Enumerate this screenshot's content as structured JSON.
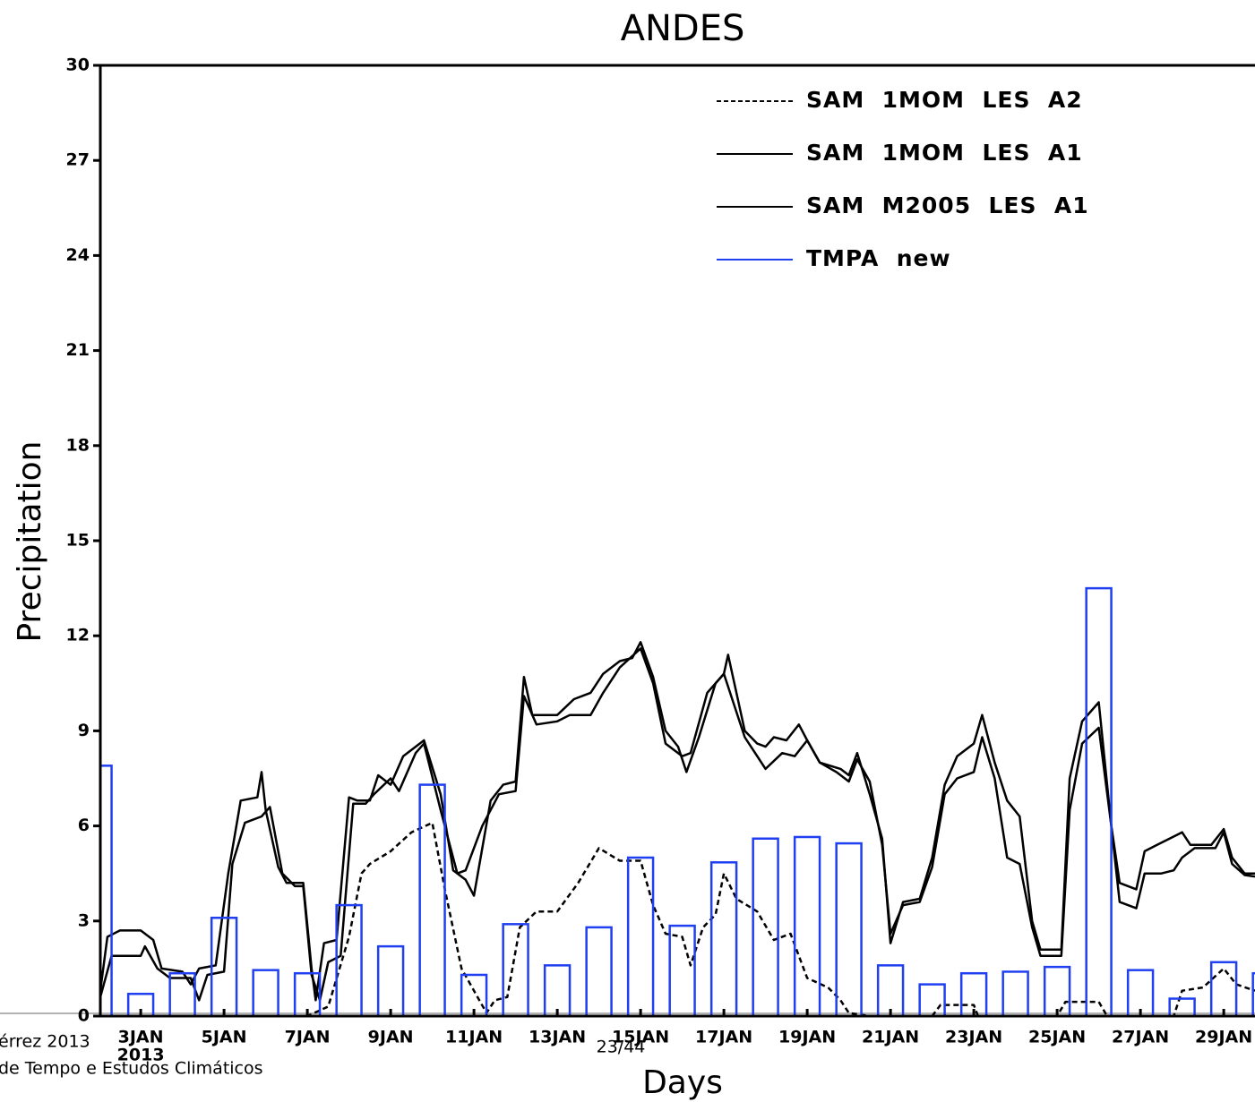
{
  "chart_data": {
    "type": "line_bar",
    "title": "ANDES",
    "x_label": "Days",
    "y_label": "Precipitation",
    "x_sublabel": "2013",
    "xlim": [
      2.03,
      29.75
    ],
    "ylim": [
      0,
      30
    ],
    "xticks": [
      {
        "value": 3,
        "label": "3JAN"
      },
      {
        "value": 5,
        "label": "5JAN"
      },
      {
        "value": 7,
        "label": "7JAN"
      },
      {
        "value": 9,
        "label": "9JAN"
      },
      {
        "value": 11,
        "label": "11JAN"
      },
      {
        "value": 13,
        "label": "13JAN"
      },
      {
        "value": 15,
        "label": "15JAN"
      },
      {
        "value": 17,
        "label": "17JAN"
      },
      {
        "value": 19,
        "label": "19JAN"
      },
      {
        "value": 21,
        "label": "21JAN"
      },
      {
        "value": 23,
        "label": "23JAN"
      },
      {
        "value": 25,
        "label": "25JAN"
      },
      {
        "value": 27,
        "label": "27JAN"
      },
      {
        "value": 29,
        "label": "29JAN"
      }
    ],
    "yticks": [
      0,
      3,
      6,
      9,
      12,
      15,
      18,
      21,
      24,
      27,
      30
    ],
    "series": [
      {
        "name": "SAM  1MOM  LES  A2",
        "color": "#000000",
        "style": "dashed",
        "kind": "line",
        "x": [
          2.03,
          7,
          7.5,
          8,
          8.3,
          8.5,
          9,
          9.5,
          10,
          10.3,
          10.7,
          11,
          11.3,
          11.5,
          11.8,
          12.1,
          12.5,
          13,
          13.5,
          14,
          14.5,
          15,
          15.3,
          15.6,
          16,
          16.2,
          16.5,
          16.8,
          17,
          17.3,
          17.8,
          18.2,
          18.6,
          19,
          19.5,
          19.8,
          20,
          20.5,
          22,
          22.2,
          23,
          23.1,
          25,
          25.2,
          26,
          26.2,
          27.8,
          28,
          28.5,
          29,
          29.3,
          29.75
        ],
        "values": [
          0,
          0,
          0.3,
          2.5,
          4.5,
          4.8,
          5.2,
          5.8,
          6.1,
          4,
          1.5,
          0.8,
          0.1,
          0.5,
          0.6,
          2.8,
          3.3,
          3.3,
          4.2,
          5.3,
          4.9,
          4.9,
          3.5,
          2.6,
          2.5,
          1.6,
          2.8,
          3.2,
          4.5,
          3.7,
          3.3,
          2.4,
          2.6,
          1.2,
          0.9,
          0.5,
          0.1,
          0,
          0,
          0.35,
          0.35,
          0,
          0,
          0.45,
          0.45,
          0,
          0,
          0.8,
          0.9,
          1.5,
          1.0,
          0.8
        ]
      },
      {
        "name": "SAM  1MOM  LES  A1",
        "color": "#000000",
        "style": "solid",
        "kind": "line",
        "x": [
          2.03,
          2.2,
          2.5,
          3,
          3.3,
          3.5,
          4,
          4.2,
          4.4,
          4.8,
          5.1,
          5.4,
          5.8,
          5.9,
          6.0,
          6.3,
          6.5,
          6.9,
          7.1,
          7.2,
          7.4,
          7.7,
          8,
          8.2,
          8.5,
          8.7,
          9,
          9.3,
          9.6,
          9.8,
          10.2,
          10.5,
          10.8,
          11,
          11.4,
          11.7,
          12,
          12.2,
          12.4,
          13,
          13.4,
          13.8,
          14.1,
          14.5,
          14.8,
          15,
          15.3,
          15.6,
          15.9,
          16.1,
          16.4,
          16.8,
          17.0,
          17.1,
          17.3,
          17.5,
          17.8,
          18,
          18.2,
          18.5,
          18.8,
          19,
          19.3,
          19.8,
          20,
          20.2,
          20.5,
          20.8,
          21,
          21.3,
          21.7,
          22,
          22.3,
          22.6,
          23,
          23.2,
          23.5,
          23.8,
          24.1,
          24.4,
          24.6,
          25.1,
          25.3,
          25.6,
          26,
          26.3,
          26.5,
          26.9,
          27.1,
          27.4,
          27.7,
          28,
          28.2,
          28.7,
          29,
          29.2,
          29.5,
          29.75
        ],
        "values": [
          0.8,
          2.5,
          2.7,
          2.7,
          2.4,
          1.5,
          1.4,
          1.0,
          1.5,
          1.6,
          4.5,
          6.8,
          6.9,
          7.7,
          6.5,
          4.7,
          4.2,
          4.2,
          1.5,
          0.5,
          2.3,
          2.4,
          6.9,
          6.8,
          6.8,
          7.6,
          7.3,
          8.2,
          8.5,
          8.7,
          7.0,
          4.6,
          4.3,
          3.8,
          6.8,
          7.3,
          7.4,
          10.7,
          9.5,
          9.5,
          10.0,
          10.2,
          10.8,
          11.2,
          11.3,
          11.8,
          10.7,
          9.0,
          8.5,
          7.7,
          8.8,
          10.5,
          10.8,
          11.4,
          10.2,
          9.0,
          8.6,
          8.5,
          8.8,
          8.7,
          9.2,
          8.7,
          8.0,
          7.8,
          7.6,
          8.3,
          7.0,
          5.6,
          2.3,
          3.6,
          3.7,
          5.0,
          7.3,
          8.2,
          8.6,
          9.5,
          8.0,
          6.8,
          6.3,
          3.0,
          2.1,
          2.1,
          7.5,
          9.3,
          9.9,
          6.0,
          4.2,
          4.0,
          5.2,
          5.4,
          5.6,
          5.8,
          5.4,
          5.4,
          5.9,
          5.0,
          4.5,
          4.5
        ]
      },
      {
        "name": "SAM  M2005  LES  A1",
        "color": "#000000",
        "style": "solid",
        "kind": "line",
        "x": [
          2.03,
          2.3,
          3,
          3.1,
          3.4,
          3.7,
          4.2,
          4.4,
          4.6,
          5,
          5.2,
          5.5,
          5.9,
          6.1,
          6.4,
          6.7,
          6.9,
          7.1,
          7.3,
          7.5,
          7.8,
          8.1,
          8.4,
          8.6,
          9,
          9.2,
          9.6,
          9.8,
          10.2,
          10.6,
          10.8,
          11.2,
          11.6,
          12,
          12.2,
          12.5,
          13,
          13.3,
          13.8,
          14.1,
          14.5,
          15,
          15.3,
          15.6,
          16,
          16.2,
          16.6,
          17,
          17.2,
          17.5,
          17.8,
          18,
          18.4,
          18.7,
          19,
          19.3,
          19.7,
          20,
          20.2,
          20.5,
          20.8,
          21,
          21.3,
          21.7,
          22,
          22.3,
          22.6,
          23,
          23.2,
          23.5,
          23.8,
          24.1,
          24.4,
          24.6,
          25.1,
          25.3,
          25.6,
          26,
          26.3,
          26.5,
          26.9,
          27.1,
          27.5,
          27.8,
          28,
          28.3,
          28.8,
          29,
          29.2,
          29.5,
          29.75
        ],
        "values": [
          0.6,
          1.9,
          1.9,
          2.2,
          1.5,
          1.2,
          1.2,
          0.5,
          1.3,
          1.4,
          4.8,
          6.1,
          6.3,
          6.6,
          4.5,
          4.1,
          4.1,
          1.3,
          0.5,
          1.7,
          1.9,
          6.7,
          6.7,
          7.0,
          7.5,
          7.1,
          8.3,
          8.6,
          6.5,
          4.5,
          4.6,
          6.0,
          7.0,
          7.1,
          10.1,
          9.2,
          9.3,
          9.5,
          9.5,
          10.2,
          11.0,
          11.6,
          10.5,
          8.6,
          8.2,
          8.3,
          10.2,
          10.8,
          10.0,
          8.8,
          8.2,
          7.8,
          8.3,
          8.2,
          8.7,
          8.0,
          7.7,
          7.4,
          8.1,
          7.4,
          5.4,
          2.6,
          3.5,
          3.6,
          4.7,
          7.0,
          7.5,
          7.7,
          8.8,
          7.5,
          5.0,
          4.8,
          2.8,
          1.9,
          1.9,
          6.5,
          8.6,
          9.1,
          6.0,
          3.6,
          3.4,
          4.5,
          4.5,
          4.6,
          5.0,
          5.3,
          5.3,
          5.8,
          4.8,
          4.45,
          4.4
        ]
      },
      {
        "name": "TMPA  new",
        "color": "#1f3ff0",
        "style": "solid",
        "kind": "bar",
        "x": [
          2,
          3,
          4,
          5,
          6,
          7,
          8,
          9,
          10,
          11,
          12,
          13,
          14,
          15,
          16,
          17,
          18,
          19,
          20,
          21,
          22,
          23,
          24,
          25,
          26,
          27,
          28,
          29,
          30
        ],
        "values": [
          7.9,
          0.7,
          1.35,
          3.1,
          1.45,
          1.35,
          3.5,
          2.2,
          7.3,
          1.3,
          2.9,
          1.6,
          2.8,
          5.0,
          2.85,
          4.85,
          5.6,
          5.65,
          5.45,
          1.6,
          1.0,
          1.35,
          1.4,
          1.55,
          13.5,
          1.45,
          0.55,
          1.7,
          1.35
        ]
      }
    ]
  },
  "footer": {
    "author": "érrez 2013",
    "institution": "de Tempo e Estudos Climáticos",
    "page": "23/44"
  }
}
